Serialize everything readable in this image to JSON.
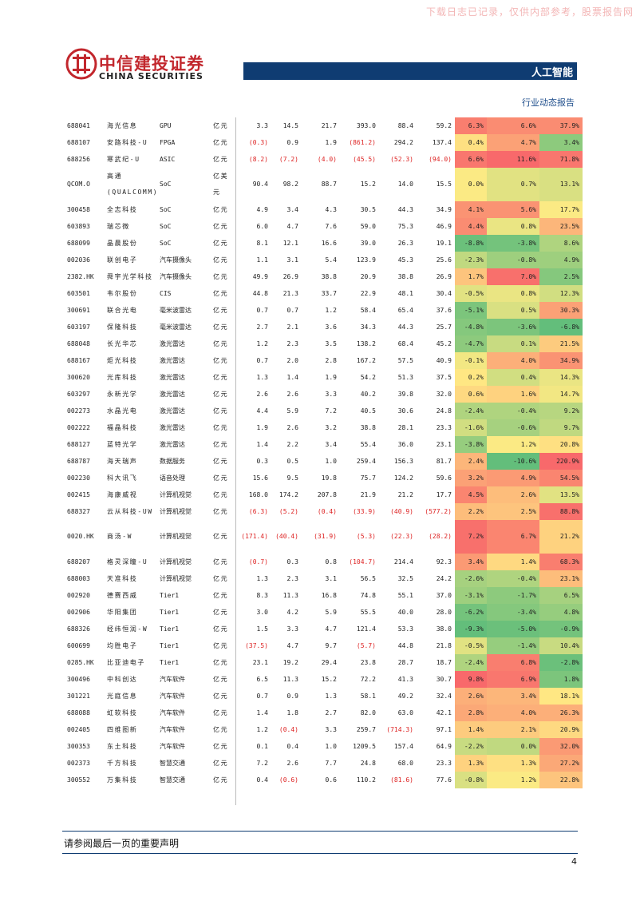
{
  "header": {
    "watermark": "下载日志已记录，仅供内部参考，股票报告网",
    "brand_cn": "中信建投证券",
    "brand_en": "CHINA SECURITIES",
    "section": "人工智能",
    "report_type": "行业动态报告"
  },
  "table": {
    "rows": [
      [
        "688041",
        "海光信息",
        "GPU",
        "亿元",
        "3.3",
        "14.5",
        "21.7",
        "393.0",
        "88.4",
        "59.2",
        "6.3%",
        "6.6%",
        "37.9%"
      ],
      [
        "688107",
        "安路科技-U",
        "FPGA",
        "亿元",
        "(0.3)",
        "0.9",
        "1.9",
        "(861.2)",
        "294.2",
        "137.4",
        "0.4%",
        "4.7%",
        "3.4%"
      ],
      [
        "688256",
        "寒武纪-U",
        "ASIC",
        "亿元",
        "(8.2)",
        "(7.2)",
        "(4.0)",
        "(45.5)",
        "(52.3)",
        "(94.0)",
        "6.6%",
        "11.6%",
        "71.8%"
      ],
      [
        "QCOM.O",
        "高通(QUALCOMM)",
        "SoC",
        "亿美元",
        "90.4",
        "98.2",
        "88.7",
        "15.2",
        "14.0",
        "15.5",
        "0.0%",
        "0.7%",
        "13.1%"
      ],
      [
        "300458",
        "全志科技",
        "SoC",
        "亿元",
        "4.9",
        "3.4",
        "4.3",
        "30.5",
        "44.3",
        "34.9",
        "4.1%",
        "5.6%",
        "17.7%"
      ],
      [
        "603893",
        "瑞芯微",
        "SoC",
        "亿元",
        "6.0",
        "4.7",
        "7.6",
        "59.0",
        "75.3",
        "46.9",
        "4.4%",
        "0.8%",
        "23.5%"
      ],
      [
        "688099",
        "晶晨股份",
        "SoC",
        "亿元",
        "8.1",
        "12.1",
        "16.6",
        "39.0",
        "26.3",
        "19.1",
        "-8.8%",
        "-3.8%",
        "8.6%"
      ],
      [
        "002036",
        "联创电子",
        "汽车摄像头",
        "亿元",
        "1.1",
        "3.1",
        "5.4",
        "123.9",
        "45.3",
        "25.6",
        "-2.3%",
        "-0.8%",
        "4.9%"
      ],
      [
        "2382.HK",
        "舜宇光学科技",
        "汽车摄像头",
        "亿元",
        "49.9",
        "26.9",
        "38.8",
        "20.9",
        "38.8",
        "26.9",
        "1.7%",
        "7.0%",
        "2.5%"
      ],
      [
        "603501",
        "韦尔股份",
        "CIS",
        "亿元",
        "44.8",
        "21.3",
        "33.7",
        "22.9",
        "48.1",
        "30.4",
        "-0.5%",
        "0.8%",
        "12.3%"
      ],
      [
        "300691",
        "联合光电",
        "毫米波雷达",
        "亿元",
        "0.7",
        "0.7",
        "1.2",
        "58.4",
        "65.4",
        "37.6",
        "-5.1%",
        "0.5%",
        "30.3%"
      ],
      [
        "603197",
        "保隆科技",
        "毫米波雷达",
        "亿元",
        "2.7",
        "2.1",
        "3.6",
        "34.3",
        "44.3",
        "25.7",
        "-4.8%",
        "-3.6%",
        "-6.8%"
      ],
      [
        "688048",
        "长光华芯",
        "激光雷达",
        "亿元",
        "1.2",
        "2.3",
        "3.5",
        "138.2",
        "68.4",
        "45.2",
        "-4.7%",
        "0.1%",
        "21.5%"
      ],
      [
        "688167",
        "炬光科技",
        "激光雷达",
        "亿元",
        "0.7",
        "2.0",
        "2.8",
        "167.2",
        "57.5",
        "40.9",
        "-0.1%",
        "4.0%",
        "34.9%"
      ],
      [
        "300620",
        "光库科技",
        "激光雷达",
        "亿元",
        "1.3",
        "1.4",
        "1.9",
        "54.2",
        "51.3",
        "37.5",
        "0.2%",
        "0.4%",
        "14.3%"
      ],
      [
        "603297",
        "永新光学",
        "激光雷达",
        "亿元",
        "2.6",
        "2.6",
        "3.3",
        "40.2",
        "39.8",
        "32.0",
        "0.6%",
        "1.6%",
        "14.7%"
      ],
      [
        "002273",
        "水晶光电",
        "激光雷达",
        "亿元",
        "4.4",
        "5.9",
        "7.2",
        "40.5",
        "30.6",
        "24.8",
        "-2.4%",
        "-0.4%",
        "9.2%"
      ],
      [
        "002222",
        "福晶科技",
        "激光雷达",
        "亿元",
        "1.9",
        "2.6",
        "3.2",
        "38.8",
        "28.1",
        "23.3",
        "-1.6%",
        "-0.6%",
        "9.7%"
      ],
      [
        "688127",
        "蓝特光学",
        "激光雷达",
        "亿元",
        "1.4",
        "2.2",
        "3.4",
        "55.4",
        "36.0",
        "23.1",
        "-3.8%",
        "1.2%",
        "20.8%"
      ],
      [
        "688787",
        "海天瑞声",
        "数据服务",
        "亿元",
        "0.3",
        "0.5",
        "1.0",
        "259.4",
        "156.3",
        "81.7",
        "2.4%",
        "-10.6%",
        "220.9%"
      ],
      [
        "002230",
        "科大讯飞",
        "语音处理",
        "亿元",
        "15.6",
        "9.5",
        "19.8",
        "75.7",
        "124.2",
        "59.6",
        "3.2%",
        "4.9%",
        "54.5%"
      ],
      [
        "002415",
        "海康威视",
        "计算机视觉",
        "亿元",
        "168.0",
        "174.2",
        "207.8",
        "21.9",
        "21.2",
        "17.7",
        "4.5%",
        "2.6%",
        "13.5%"
      ],
      [
        "688327",
        "云从科技-UW",
        "计算机视觉",
        "亿元",
        "(6.3)",
        "(5.2)",
        "(0.4)",
        "(33.9)",
        "(40.9)",
        "(577.2)",
        "2.2%",
        "2.5%",
        "88.8%"
      ],
      [
        "0020.HK",
        "商汤-W",
        "计算机视觉",
        "亿元",
        "(171.4)",
        "(40.4)",
        "(31.9)",
        "(5.3)",
        "(22.3)",
        "(28.2)",
        "7.2%",
        "6.7%",
        "21.2%"
      ],
      [
        "688207",
        "格灵深瞳-U",
        "计算机视觉",
        "亿元",
        "(0.7)",
        "0.3",
        "0.8",
        "(104.7)",
        "214.4",
        "92.3",
        "3.4%",
        "1.4%",
        "68.3%"
      ],
      [
        "688003",
        "天准科技",
        "计算机视觉",
        "亿元",
        "1.3",
        "2.3",
        "3.1",
        "56.5",
        "32.5",
        "24.2",
        "-2.6%",
        "-0.4%",
        "23.1%"
      ],
      [
        "002920",
        "德赛西威",
        "Tier1",
        "亿元",
        "8.3",
        "11.3",
        "16.8",
        "74.8",
        "55.1",
        "37.0",
        "-3.1%",
        "-1.7%",
        "6.5%"
      ],
      [
        "002906",
        "华阳集团",
        "Tier1",
        "亿元",
        "3.0",
        "4.2",
        "5.9",
        "55.5",
        "40.0",
        "28.0",
        "-6.2%",
        "-3.4%",
        "4.8%"
      ],
      [
        "688326",
        "经纬恒润-W",
        "Tier1",
        "亿元",
        "1.5",
        "3.3",
        "4.7",
        "121.4",
        "53.3",
        "38.0",
        "-9.3%",
        "-5.0%",
        "-0.9%"
      ],
      [
        "600699",
        "均胜电子",
        "Tier1",
        "亿元",
        "(37.5)",
        "4.7",
        "9.7",
        "(5.7)",
        "44.8",
        "21.8",
        "-0.5%",
        "-1.4%",
        "10.4%"
      ],
      [
        "0285.HK",
        "比亚迪电子",
        "Tier1",
        "亿元",
        "23.1",
        "19.2",
        "29.4",
        "23.8",
        "28.7",
        "18.7",
        "-2.4%",
        "6.8%",
        "-2.8%"
      ],
      [
        "300496",
        "中科创达",
        "汽车软件",
        "亿元",
        "6.5",
        "11.3",
        "15.2",
        "72.2",
        "41.3",
        "30.7",
        "9.8%",
        "6.9%",
        "1.8%"
      ],
      [
        "301221",
        "光庭信息",
        "汽车软件",
        "亿元",
        "0.7",
        "0.9",
        "1.3",
        "58.1",
        "49.2",
        "32.4",
        "2.6%",
        "3.4%",
        "18.1%"
      ],
      [
        "688088",
        "虹软科技",
        "汽车软件",
        "亿元",
        "1.4",
        "1.8",
        "2.7",
        "82.0",
        "63.0",
        "42.1",
        "2.8%",
        "4.0%",
        "26.3%"
      ],
      [
        "002405",
        "四维图新",
        "汽车软件",
        "亿元",
        "1.2",
        "(0.4)",
        "3.3",
        "259.7",
        "(714.3)",
        "97.1",
        "1.4%",
        "2.1%",
        "20.9%"
      ],
      [
        "300353",
        "东土科技",
        "汽车软件",
        "亿元",
        "0.1",
        "0.4",
        "1.0",
        "1209.5",
        "157.4",
        "64.9",
        "-2.2%",
        "0.0%",
        "32.0%"
      ],
      [
        "002373",
        "千方科技",
        "智慧交通",
        "亿元",
        "7.2",
        "2.6",
        "7.7",
        "24.8",
        "68.0",
        "23.3",
        "1.3%",
        "1.3%",
        "27.2%"
      ],
      [
        "300552",
        "万集科技",
        "智慧交通",
        "亿元",
        "0.4",
        "(0.6)",
        "0.6",
        "110.2",
        "(81.6)",
        "77.6",
        "-0.8%",
        "1.2%",
        "22.8%"
      ]
    ]
  },
  "footer": {
    "disclaimer": "请参阅最后一页的重要声明",
    "page": "4"
  }
}
